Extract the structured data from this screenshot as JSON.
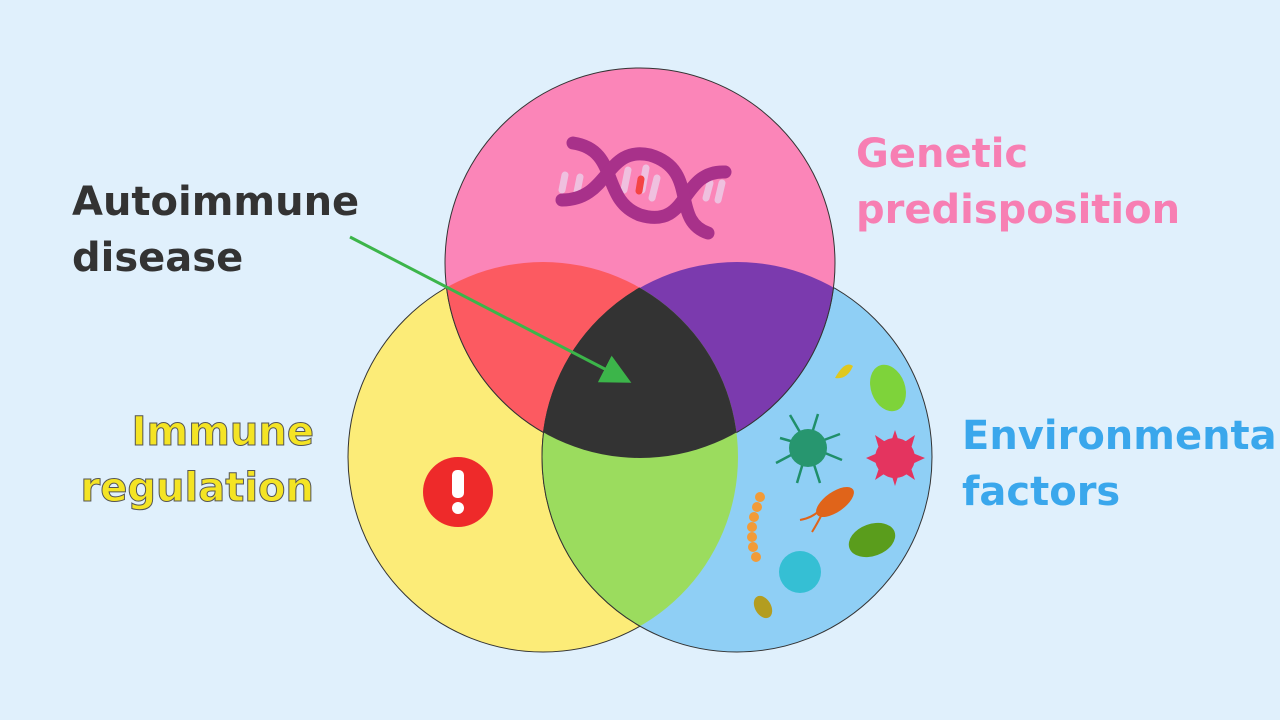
{
  "labels": {
    "center": [
      "Autoimmune",
      "disease"
    ],
    "top": [
      "Genetic",
      "predisposition"
    ],
    "left": [
      "Immune",
      "regulation"
    ],
    "right": [
      "Environmental",
      "factors"
    ]
  },
  "colors": {
    "background": "#e0f0fc",
    "genetic": "#fb85b8",
    "immune": "#fcec78",
    "environmental": "#8fcff5",
    "genetic_immune": "#fc5a61",
    "genetic_environmental": "#7b3aae",
    "immune_environmental": "#9bdc5e",
    "center": "#333333",
    "arrow": "#3cb54a"
  },
  "icons": [
    "dna-icon",
    "exclamation-icon",
    "microbes-icon"
  ]
}
